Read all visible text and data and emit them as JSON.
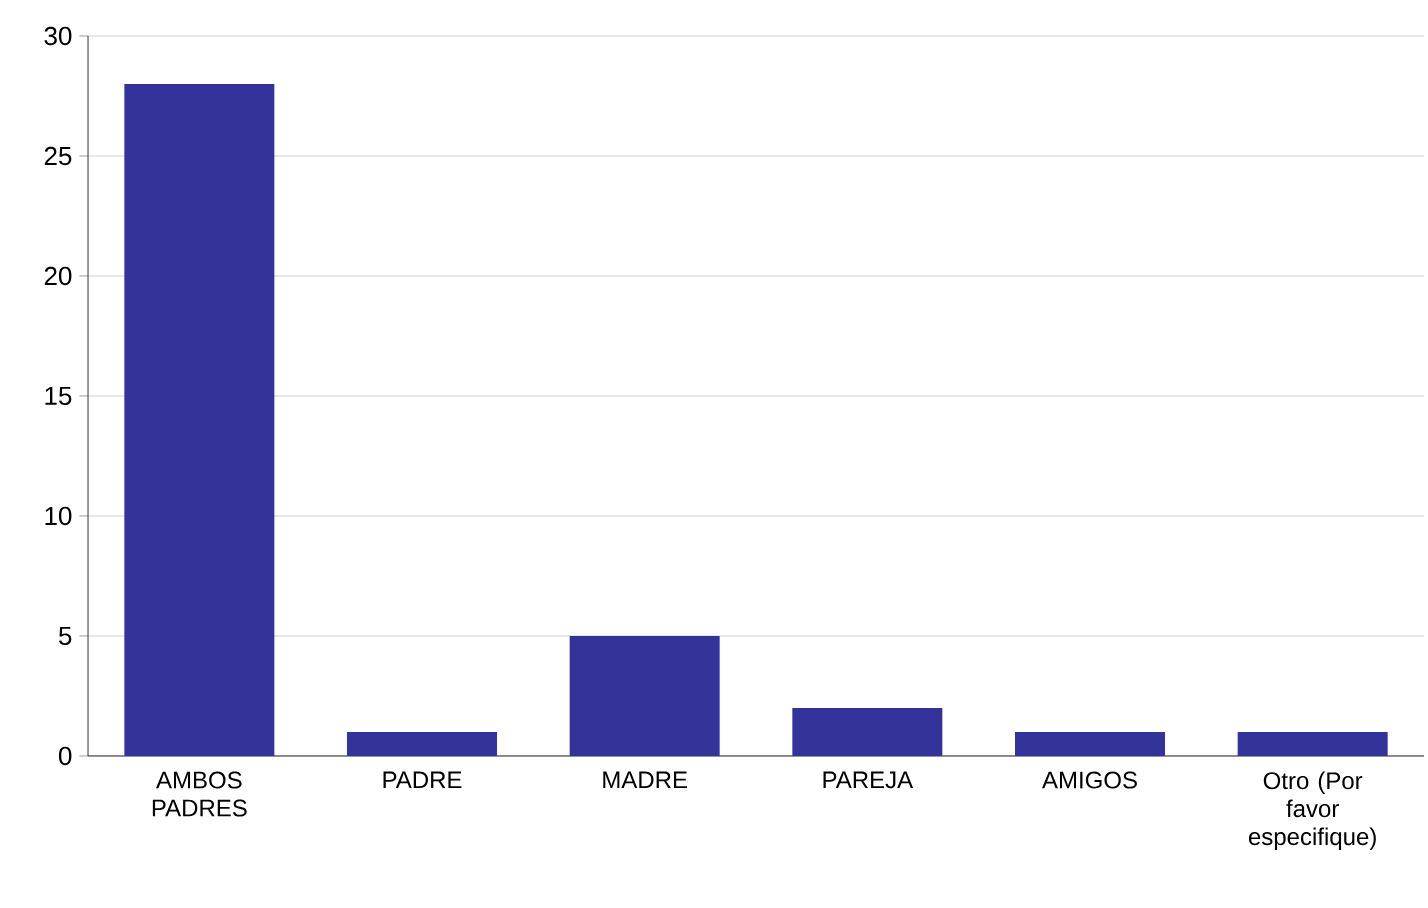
{
  "chart_data": {
    "type": "bar",
    "categories": [
      "AMBOS PADRES",
      "PADRE",
      "MADRE",
      "PAREJA",
      "AMIGOS",
      "Otro (Por favor especifique)"
    ],
    "values": [
      28,
      1,
      5,
      2,
      1,
      1
    ],
    "color": "#333399",
    "ylim": [
      0,
      30
    ],
    "yticks": [
      0,
      5,
      10,
      15,
      20,
      25,
      30
    ],
    "grid": "y"
  }
}
